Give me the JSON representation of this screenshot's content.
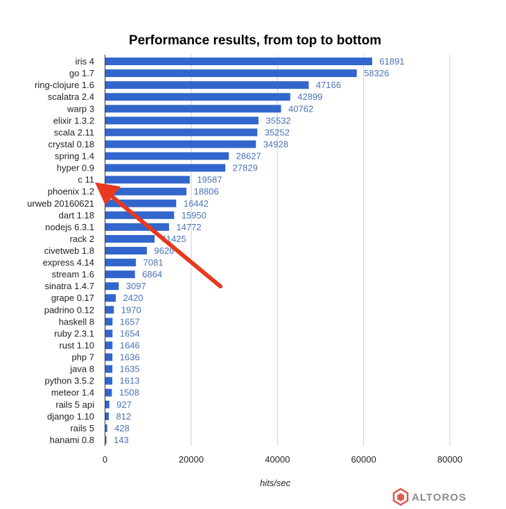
{
  "chart_data": {
    "type": "bar",
    "orientation": "horizontal",
    "title": "Performance results, from top to bottom",
    "xlabel": "hits/sec",
    "ylabel": "",
    "xlim": [
      0,
      80000
    ],
    "xticks": [
      0,
      20000,
      40000,
      60000,
      80000
    ],
    "grid": true,
    "categories": [
      "iris 4",
      "go 1.7",
      "ring-clojure 1.6",
      "scalatra 2.4",
      "warp 3",
      "elixir 1.3.2",
      "scala 2.11",
      "crystal 0.18",
      "spring 1.4",
      "hyper 0.9",
      "c 11",
      "phoenix 1.2",
      "urweb 20160621",
      "dart 1.18",
      "nodejs 6.3.1",
      "rack 2",
      "civetweb 1.8",
      "express 4.14",
      "stream 1.6",
      "sinatra 1.4.7",
      "grape 0.17",
      "padrino 0.12",
      "haskell 8",
      "ruby 2.3.1",
      "rust 1.10",
      "php 7",
      "java 8",
      "python 3.5.2",
      "meteor 1.4",
      "rails 5 api",
      "django 1.10",
      "rails 5",
      "hanami 0.8"
    ],
    "values": [
      61891,
      58326,
      47166,
      42899,
      40762,
      35532,
      35252,
      34928,
      28627,
      27829,
      19587,
      18806,
      16442,
      15950,
      14772,
      11425,
      9626,
      7081,
      6864,
      3097,
      2420,
      1970,
      1657,
      1654,
      1646,
      1636,
      1635,
      1613,
      1508,
      927,
      812,
      428,
      143
    ],
    "annotations": [
      {
        "type": "arrow",
        "points_to": "c 11",
        "color": "#e8391e"
      }
    ]
  },
  "colors": {
    "bar": "#3366cc",
    "value_label": "#4a72b8",
    "grid": "#cccccc",
    "arrow": "#e8391e"
  },
  "logo": {
    "text": "ALTOROS"
  }
}
